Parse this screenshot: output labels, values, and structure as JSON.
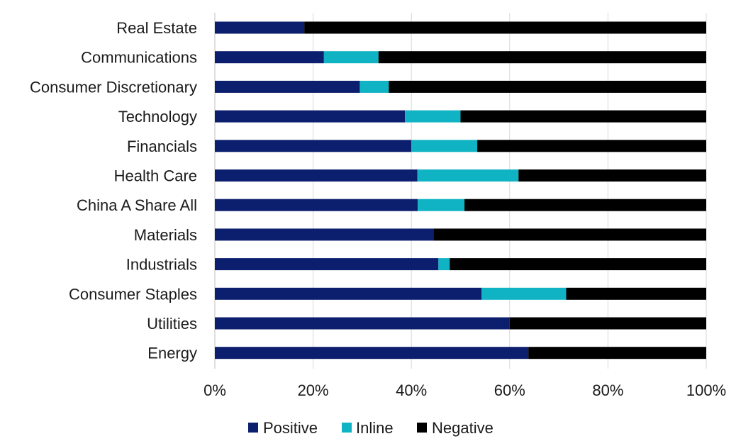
{
  "chart_data": {
    "type": "bar",
    "orientation": "horizontal",
    "stacked": "percent",
    "categories": [
      "Real Estate",
      "Communications",
      "Consumer Discretionary",
      "Technology",
      "Financials",
      "Health Care",
      "China A Share All",
      "Materials",
      "Industrials",
      "Consumer Staples",
      "Utilities",
      "Energy"
    ],
    "series": [
      {
        "name": "Positive",
        "color": "#0c1f6e",
        "values": [
          18.2,
          22.2,
          29.5,
          38.7,
          40.0,
          41.2,
          41.3,
          44.5,
          45.5,
          54.3,
          60.0,
          63.8
        ]
      },
      {
        "name": "Inline",
        "color": "#10b3c4",
        "values": [
          0.0,
          11.1,
          5.9,
          11.3,
          13.4,
          20.6,
          9.5,
          0.0,
          2.3,
          17.2,
          0.0,
          0.0
        ]
      },
      {
        "name": "Negative",
        "color": "#000000",
        "values": [
          81.8,
          66.7,
          64.6,
          50.0,
          46.6,
          38.2,
          49.2,
          55.5,
          52.2,
          28.5,
          40.0,
          36.2
        ]
      }
    ],
    "x_ticks": [
      "0%",
      "20%",
      "40%",
      "60%",
      "80%",
      "100%"
    ],
    "xlim": [
      0,
      100
    ],
    "title": "",
    "xlabel": "",
    "ylabel": "",
    "grid": "vertical",
    "legend": "bottom"
  }
}
